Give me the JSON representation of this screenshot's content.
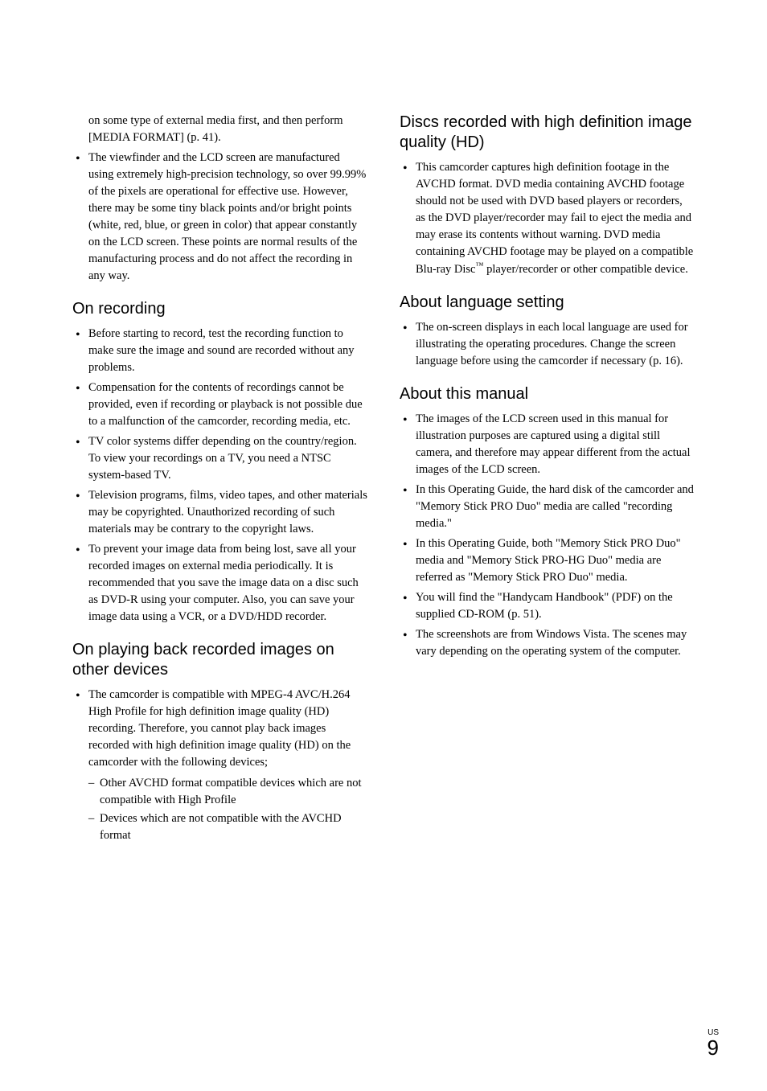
{
  "left": {
    "cont1": "on some type of external media first, and then perform [MEDIA FORMAT] (p. 41).",
    "bullet1": "The viewfinder and the LCD screen are manufactured using extremely high-precision technology, so over 99.99% of the pixels are operational for effective use. However, there may be some tiny black points and/or bright points (white, red, blue, or green in color) that appear constantly on the LCD screen. These points are normal results of the manufacturing process and do not affect the recording in any way.",
    "h1": "On recording",
    "rec_b1": "Before starting to record, test the recording function to make sure the image and sound are recorded without any problems.",
    "rec_b2": "Compensation for the contents of recordings cannot be provided, even if recording or playback is not possible due to a malfunction of the camcorder, recording media, etc.",
    "rec_b3": "TV color systems differ depending on the country/region. To view your recordings on a TV, you need a NTSC system-based TV.",
    "rec_b4": "Television programs, films, video tapes, and other materials may be copyrighted. Unauthorized recording of such materials may be contrary to the copyright laws.",
    "rec_b5": "To prevent your image data from being lost, save all your recorded images on external media periodically. It is recommended that you save the image data on a disc such as DVD-R using your computer. Also, you can save your image data using a VCR, or a DVD/HDD recorder.",
    "h2": "On playing back recorded images on other devices",
    "play_b1": "The camcorder is compatible with MPEG-4 AVC/H.264 High Profile for high definition image quality (HD) recording. Therefore, you cannot play back images recorded with high definition image quality (HD) on the camcorder with the following devices;",
    "play_s1": "Other AVCHD format compatible devices which are not compatible with High Profile",
    "play_s2": "Devices which are not compatible with the AVCHD format"
  },
  "right": {
    "h1": "Discs recorded with high definition image quality (HD)",
    "disc_b1_a": "This camcorder captures high definition footage in the AVCHD format. DVD media containing AVCHD footage should not be used with DVD based players or recorders, as the DVD player/recorder may fail to eject the media and may erase its contents without warning. DVD media containing AVCHD footage may be played on a compatible Blu-ray Disc",
    "disc_b1_b": " player/recorder or other compatible device.",
    "h2": "About language setting",
    "lang_b1": "The on-screen displays in each local language are used for illustrating the operating procedures. Change the screen language before using the camcorder if necessary (p. 16).",
    "h3": "About this manual",
    "man_b1": "The images of the LCD screen used in this manual for illustration purposes are captured using a digital still camera, and therefore may appear different from the actual images of the LCD screen.",
    "man_b2": "In this Operating Guide, the hard disk of the camcorder and \"Memory Stick PRO Duo\" media are called \"recording media.\"",
    "man_b3": "In this Operating Guide, both \"Memory Stick PRO Duo\" media and \"Memory Stick PRO-HG Duo\" media are referred as \"Memory Stick PRO Duo\" media.",
    "man_b4": "You will find the \"Handycam Handbook\" (PDF) on the supplied CD-ROM (p. 51).",
    "man_b5": "The screenshots are from Windows Vista. The scenes may vary depending on the operating system of the computer."
  },
  "footer": {
    "region": "US",
    "page": "9"
  }
}
